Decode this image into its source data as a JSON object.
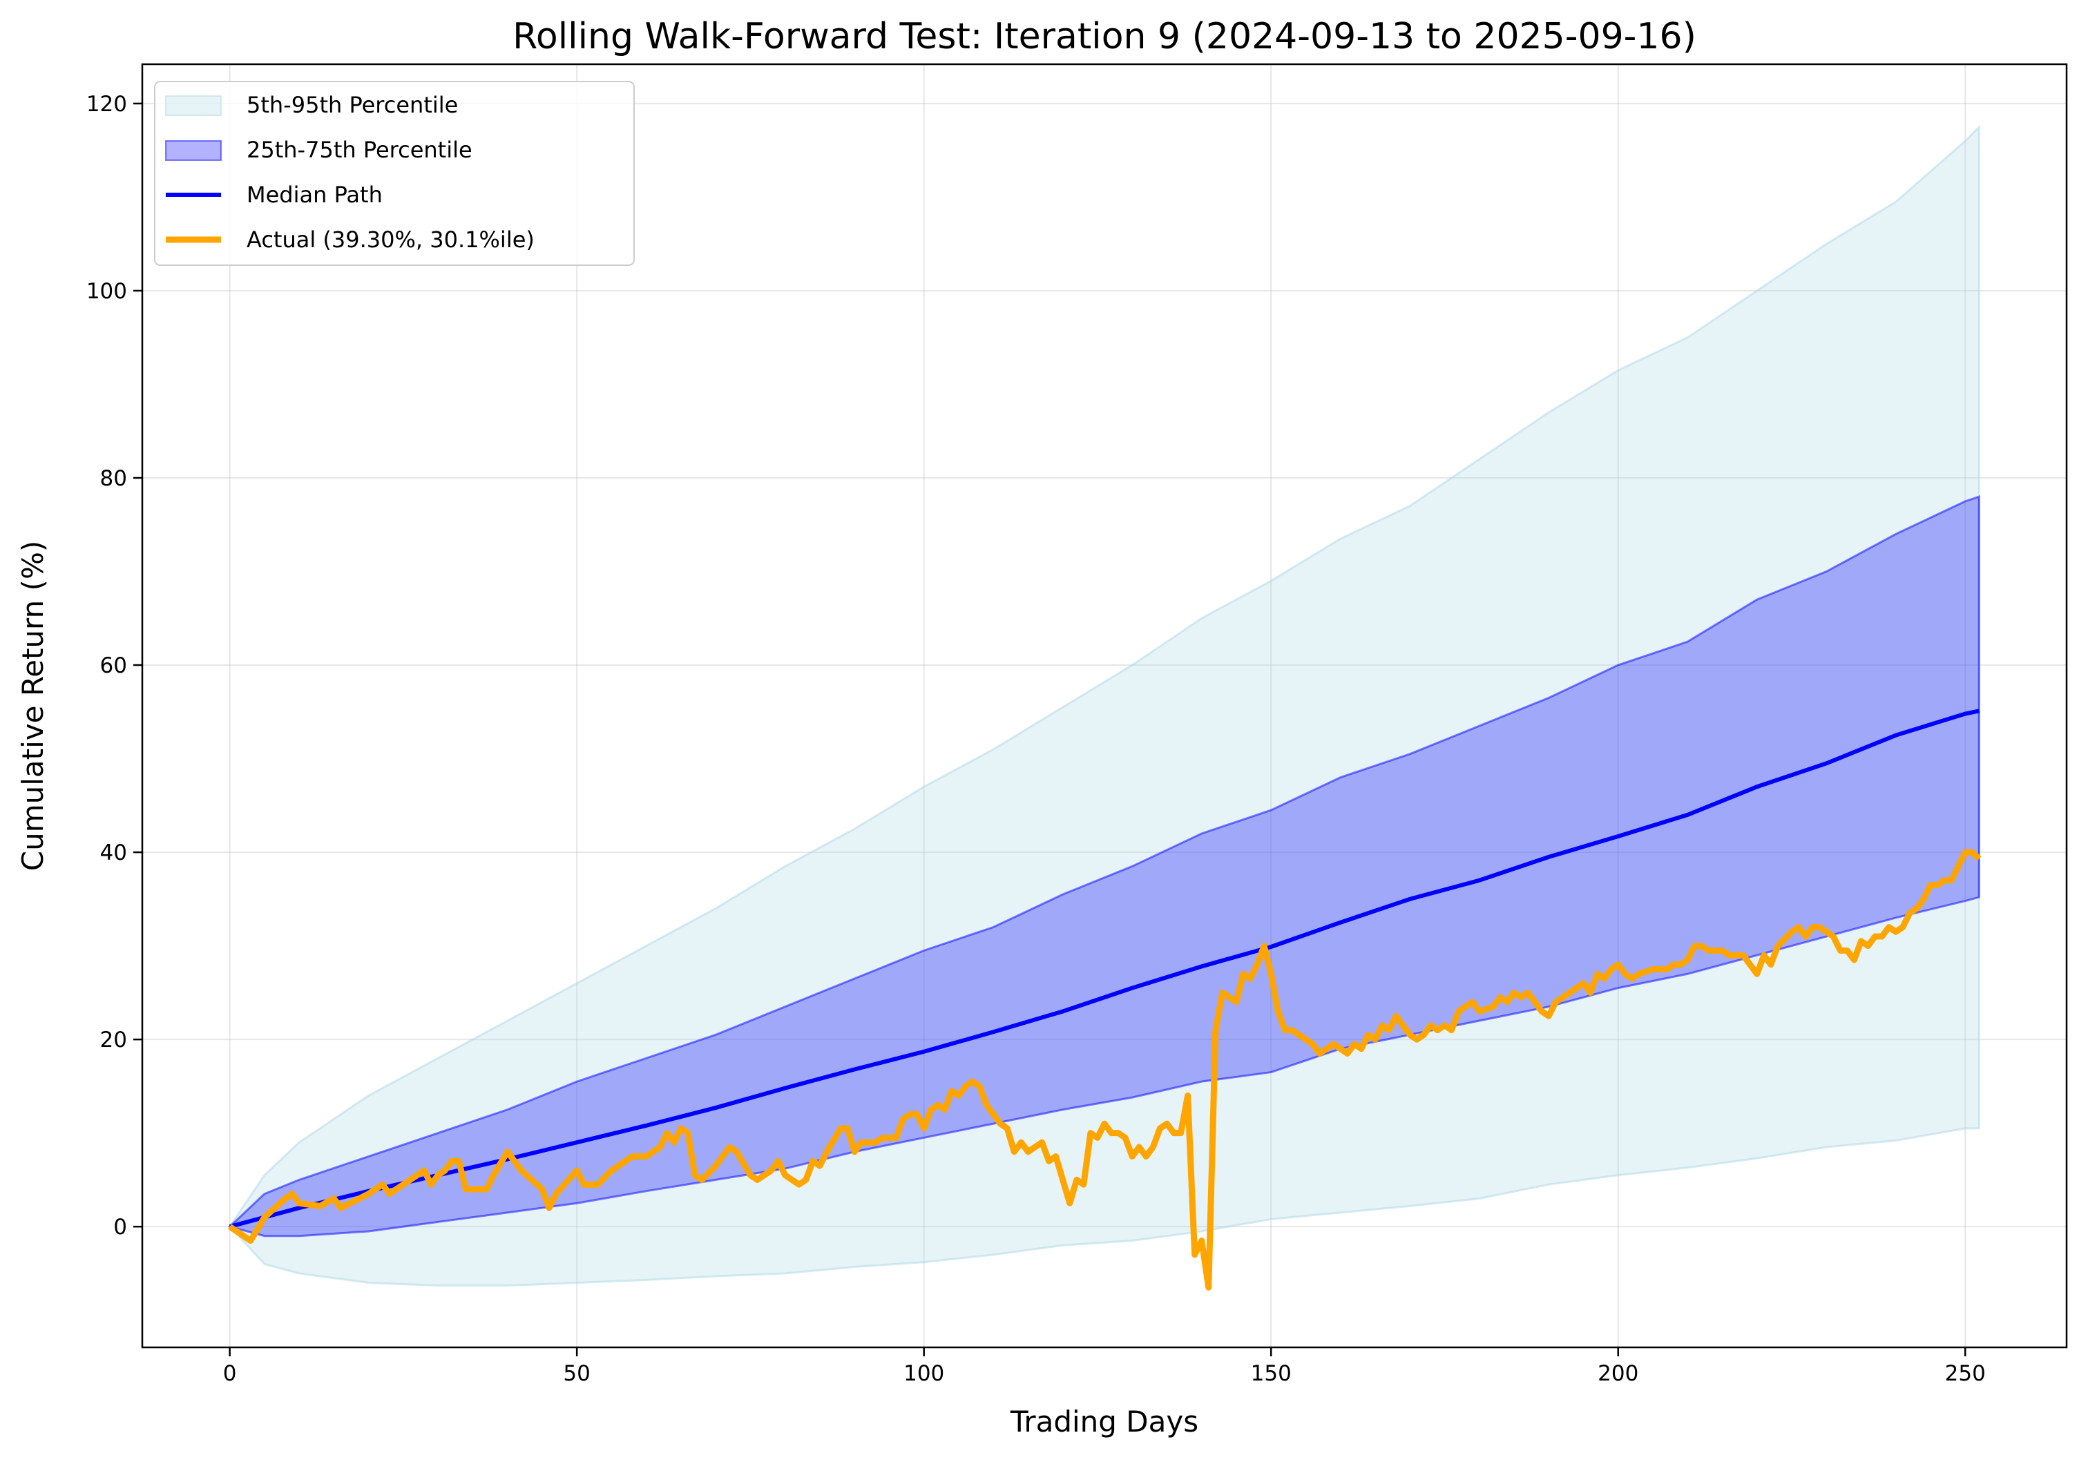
{
  "chart_data": {
    "type": "line",
    "title": "Rolling Walk-Forward Test: Iteration 9 (2024-09-13 to 2025-09-16)",
    "xlabel": "Trading Days",
    "ylabel": "Cumulative Return (%)",
    "xlim": [
      -12.6,
      264.6
    ],
    "ylim": [
      -12.9,
      124.2
    ],
    "xticks": [
      0,
      50,
      100,
      150,
      200,
      250
    ],
    "yticks": [
      0,
      20,
      40,
      60,
      80,
      100,
      120
    ],
    "grid": true,
    "legend_position": "upper-left",
    "colors": {
      "band_outer": "#add8e6",
      "band_inner": "#0000ff",
      "median": "#0000ff",
      "actual": "#ffa500"
    },
    "legend": [
      {
        "label": "5th-95th Percentile",
        "kind": "band_outer"
      },
      {
        "label": "25th-75th Percentile",
        "kind": "band_inner"
      },
      {
        "label": "Median Path",
        "kind": "median"
      },
      {
        "label": "Actual (39.30%, 30.1%ile)",
        "kind": "actual"
      }
    ],
    "band_x": [
      0,
      5,
      10,
      20,
      30,
      40,
      50,
      60,
      70,
      80,
      90,
      100,
      110,
      120,
      130,
      140,
      150,
      160,
      170,
      180,
      190,
      200,
      210,
      220,
      230,
      240,
      250,
      252
    ],
    "p95": [
      0,
      5.5,
      9,
      14,
      18,
      22,
      26,
      30,
      34,
      38.5,
      42.5,
      47,
      51,
      55.5,
      60,
      65,
      69,
      73.5,
      77,
      82,
      87,
      91.5,
      95,
      100,
      105,
      109.5,
      116,
      117.5
    ],
    "p75": [
      0,
      3.5,
      5,
      7.5,
      10,
      12.5,
      15.5,
      18,
      20.5,
      23.5,
      26.5,
      29.5,
      32,
      35.5,
      38.5,
      42,
      44.5,
      48,
      50.5,
      53.5,
      56.5,
      60,
      62.5,
      67,
      70,
      74,
      77.5,
      78
    ],
    "median": [
      0,
      1,
      2,
      3.8,
      5.5,
      7.2,
      9,
      10.8,
      12.7,
      14.8,
      16.8,
      18.7,
      20.8,
      23,
      25.5,
      27.8,
      29.9,
      32.5,
      35,
      37,
      39.5,
      41.7,
      44,
      47,
      49.5,
      52.5,
      54.8,
      55.1
    ],
    "p25": [
      0,
      -1,
      -1,
      -0.5,
      0.5,
      1.5,
      2.5,
      3.8,
      5,
      6.2,
      8,
      9.5,
      11,
      12.5,
      13.8,
      15.5,
      16.5,
      19,
      20.5,
      22,
      23.5,
      25.5,
      27,
      29,
      31,
      33,
      34.8,
      35.2
    ],
    "p5": [
      0,
      -4,
      -5,
      -6,
      -6.3,
      -6.3,
      -6,
      -5.7,
      -5.3,
      -5,
      -4.3,
      -3.8,
      -3,
      -2,
      -1.5,
      -0.5,
      0.8,
      1.5,
      2.2,
      3,
      4.5,
      5.5,
      6.3,
      7.3,
      8.5,
      9.2,
      10.5,
      10.5
    ],
    "actual_x": [
      0,
      3,
      5,
      8,
      9,
      10,
      13,
      15,
      16,
      20,
      22,
      23,
      25,
      27,
      28,
      29,
      30,
      31,
      32,
      33,
      34,
      36,
      37,
      38,
      40,
      42,
      45,
      46,
      47,
      50,
      51,
      53,
      55,
      58,
      60,
      62,
      63,
      64,
      65,
      66,
      67,
      68,
      70,
      72,
      73,
      75,
      76,
      78,
      79,
      80,
      82,
      83,
      84,
      85,
      86,
      88,
      89,
      90,
      91,
      93,
      94,
      96,
      97,
      98,
      99,
      100,
      101,
      102,
      103,
      104,
      105,
      106,
      107,
      108,
      109,
      110,
      111,
      112,
      113,
      114,
      115,
      117,
      118,
      119,
      120,
      121,
      122,
      123,
      124,
      125,
      126,
      127,
      128,
      129,
      130,
      131,
      132,
      133,
      134,
      135,
      136,
      137,
      138,
      139,
      140,
      141,
      142,
      143,
      144,
      145,
      146,
      147,
      148,
      149,
      150,
      151,
      152,
      153,
      154,
      156,
      157,
      159,
      160,
      161,
      162,
      163,
      164,
      165,
      166,
      167,
      168,
      169,
      170,
      171,
      172,
      173,
      174,
      175,
      176,
      177,
      178,
      179,
      180,
      182,
      183,
      184,
      185,
      186,
      187,
      188,
      189,
      190,
      191,
      193,
      195,
      196,
      197,
      198,
      199,
      200,
      201,
      202,
      203,
      205,
      207,
      208,
      209,
      210,
      211,
      212,
      213,
      215,
      216,
      218,
      219,
      220,
      221,
      222,
      223,
      225,
      226,
      227,
      228,
      229,
      230,
      231,
      232,
      233,
      234,
      235,
      236,
      237,
      238,
      239,
      240,
      241,
      242,
      243,
      244,
      245,
      246,
      247,
      248,
      249,
      250,
      251,
      252
    ],
    "actual": [
      0,
      -1.5,
      1,
      3,
      3.5,
      2.5,
      2.2,
      3,
      2,
      3.5,
      4.5,
      3.5,
      4.5,
      5.5,
      6,
      4.5,
      5.5,
      6,
      7,
      7,
      4,
      4,
      4,
      5.5,
      8,
      6,
      4,
      2,
      3.5,
      6,
      4.5,
      4.5,
      6,
      7.5,
      7.5,
      8.5,
      10,
      9,
      10.5,
      10,
      5.5,
      5,
      6.5,
      8.5,
      8,
      5.5,
      5,
      6,
      7,
      5.5,
      4.5,
      5,
      7,
      6.5,
      8,
      10.5,
      10.5,
      8,
      9,
      9,
      9.5,
      9.5,
      11.5,
      12,
      12,
      10.5,
      12.5,
      13,
      12.5,
      14.5,
      14,
      15,
      15.5,
      15,
      13,
      12,
      11,
      10.5,
      8,
      9,
      8,
      9,
      7,
      7.5,
      5,
      2.5,
      5,
      4.5,
      10,
      9.5,
      11,
      10,
      10,
      9.5,
      7.5,
      8.5,
      7.5,
      8.5,
      10.5,
      11,
      10,
      10,
      14,
      -3,
      -1.5,
      -6.5,
      21,
      25,
      24.5,
      24,
      27,
      26.5,
      28,
      30,
      27,
      23,
      21,
      21,
      20.5,
      19.5,
      18.5,
      19.5,
      19,
      18.5,
      19.5,
      19,
      20.5,
      20,
      21.5,
      21,
      22.5,
      21.5,
      20.5,
      20,
      20.5,
      21.5,
      21,
      21.5,
      21,
      23,
      23.5,
      24,
      23,
      23.5,
      24.5,
      24,
      25,
      24.5,
      25,
      24,
      23,
      22.5,
      24,
      25,
      26,
      25,
      27,
      26.5,
      27.5,
      28,
      27,
      26.5,
      27,
      27.5,
      27.5,
      28,
      28,
      28.5,
      30,
      30,
      29.5,
      29.5,
      29,
      29,
      28,
      27,
      29,
      28,
      30,
      31.5,
      32,
      31,
      32,
      32,
      31.5,
      31,
      29.5,
      29.5,
      28.5,
      30.5,
      30,
      31,
      31,
      32,
      31.5,
      32,
      33.5,
      34,
      35,
      36.5,
      36.5,
      37,
      37,
      38.5,
      40,
      40,
      39.3
    ]
  }
}
